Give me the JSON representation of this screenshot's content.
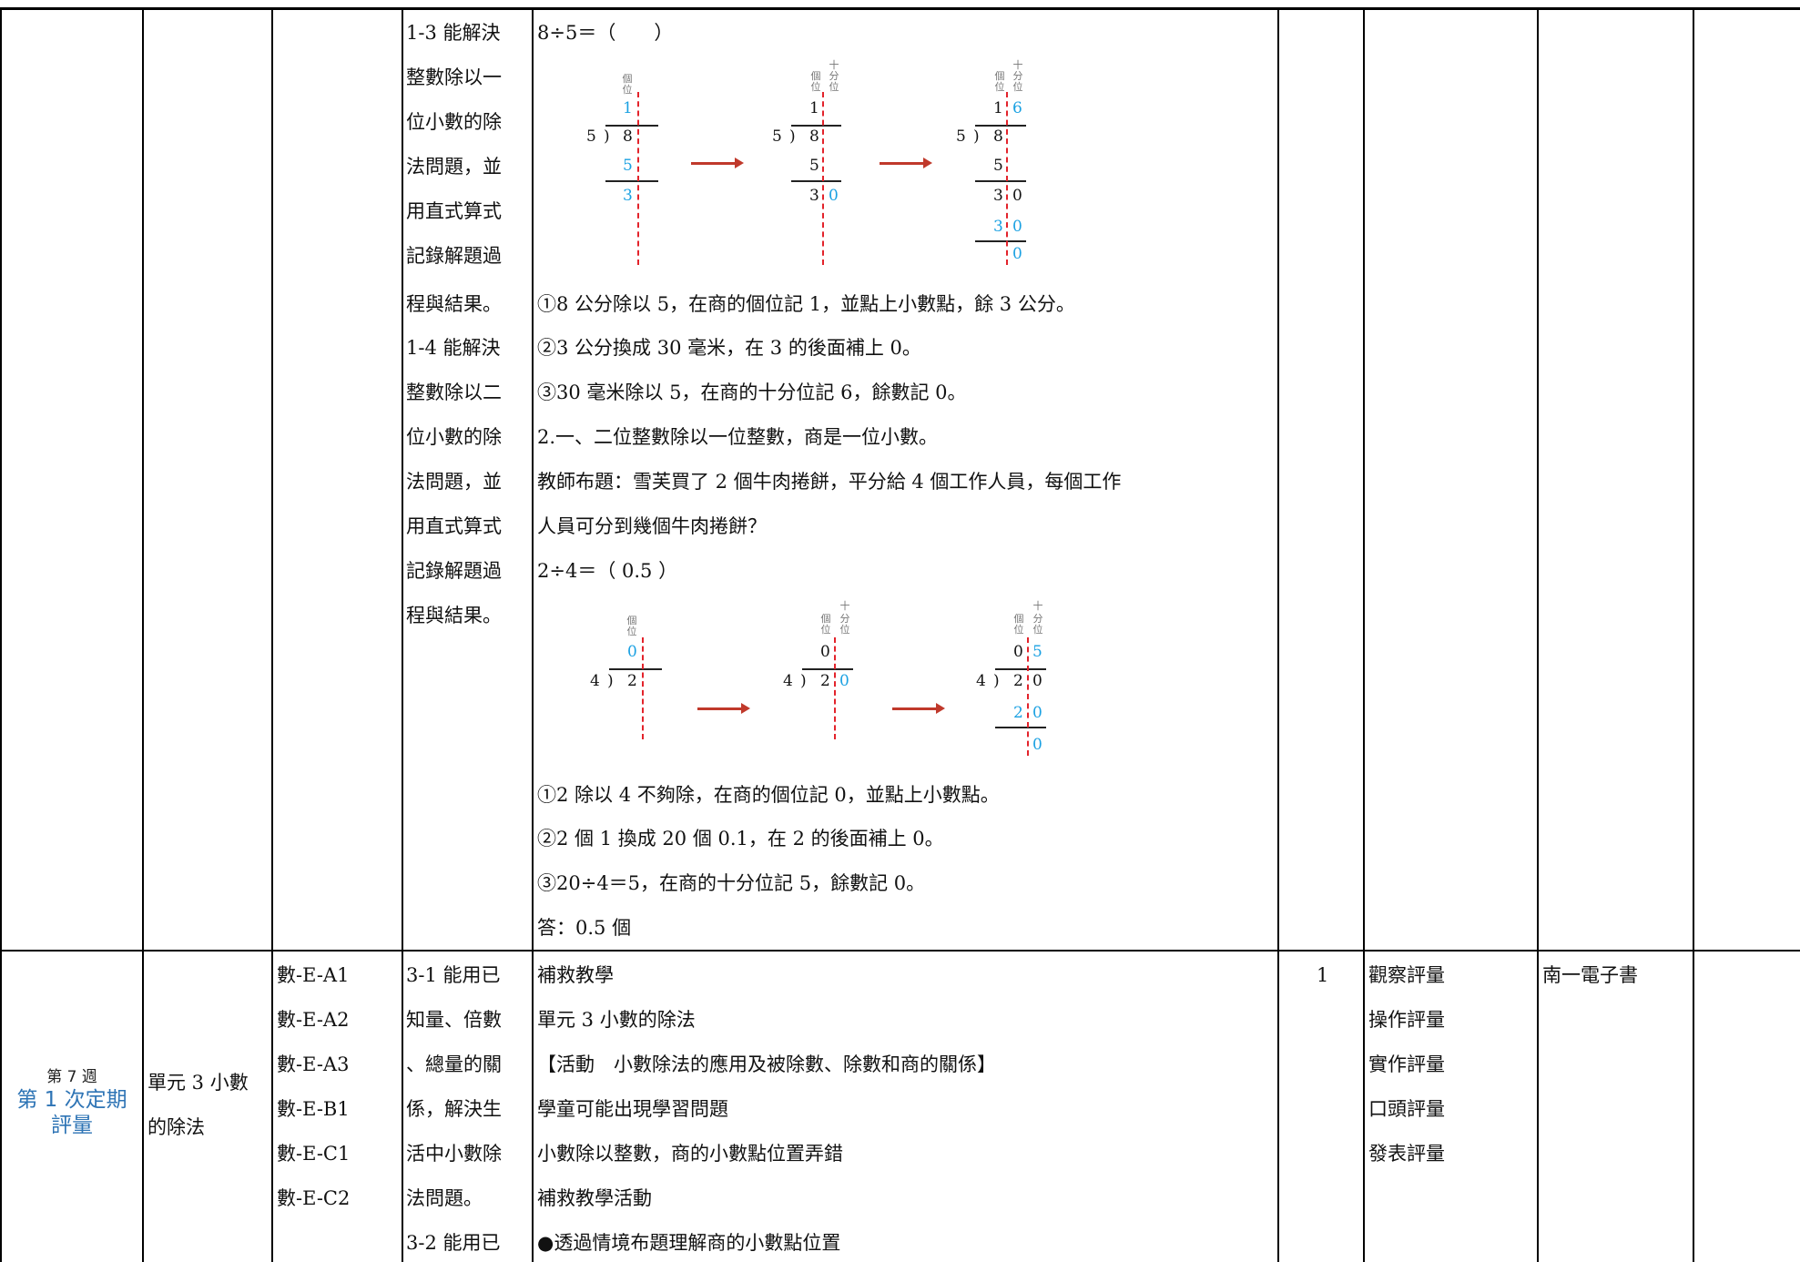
{
  "row1": {
    "objectives": [
      "1-3 能解決",
      "整數除以一",
      "位小數的除",
      "法問題，並",
      "用直式算式",
      "記錄解題過",
      "程與結果。",
      "1-4 能解決",
      "整數除以二",
      "位小數的除",
      "法問題，並",
      "用直式算式",
      "記錄解題過",
      "程與結果。"
    ],
    "equation1": "8÷5＝（　　）",
    "steps1": [
      "①8 公分除以 5，在商的個位記 1，並點上小數點，餘 3 公分。",
      "②3 公分換成 30 毫米，在 3 的後面補上 0。",
      "③30 毫米除以 5，在商的十分位記 6，餘數記 0。"
    ],
    "heading2": "2.一、二位整數除以一位整數，商是一位小數。",
    "problem2": [
      "教師布題：雪芙買了 2 個牛肉捲餅，平分給 4 個工作人員，每個工作",
      "人員可分到幾個牛肉捲餅？"
    ],
    "equation2": "2÷4＝（ 0.5 ）",
    "steps2": [
      "①2 除以 4 不夠除，在商的個位記 0，並點上小數點。",
      "②2 個 1 換成 20 個 0.1，在 2 的後面補上 0。",
      "③20÷4＝5，在商的十分位記 5，餘數記 0。"
    ],
    "answer2": "答：0.5 個",
    "place_labels": {
      "ones": "個位",
      "tenths": "十分位"
    },
    "div1": {
      "divisor": "5",
      "dividend": "8",
      "quotient": [
        "1",
        "6"
      ],
      "sub1": "5",
      "rem1": [
        "3",
        "0"
      ],
      "sub2": [
        "3",
        "0"
      ],
      "rem2": "0"
    },
    "div2": {
      "divisor": "4",
      "dividend": [
        "2",
        "0"
      ],
      "quotient": [
        "0",
        "5"
      ],
      "sub": [
        "2",
        "0"
      ],
      "rem": "0"
    }
  },
  "row2": {
    "week": "第 7 週",
    "exam": [
      "第 1 次定期",
      "評量"
    ],
    "unit": [
      "單元 3 小數",
      "的除法"
    ],
    "codes": [
      "數-E-A1",
      "數-E-A2",
      "數-E-A3",
      "數-E-B1",
      "數-E-C1",
      "數-E-C2"
    ],
    "objectives": [
      "3-1 能用已",
      "知量、倍數",
      "、總量的關",
      "係，解決生",
      "活中小數除",
      "法問題。",
      "3-2 能用已"
    ],
    "content": [
      "補救教學",
      "單元 3 小數的除法",
      "【活動　小數除法的應用及被除數、除數和商的關係】",
      "學童可能出現學習問題",
      "小數除以整數，商的小數點位置弄錯",
      "補救教學活動",
      "●透過情境布題理解商的小數點位置"
    ],
    "hours": "1",
    "assessment": [
      "觀察評量",
      "操作評量",
      "實作評量",
      "口頭評量",
      "發表評量"
    ],
    "resource": "南一電子書"
  },
  "colors": {
    "accent_blue": "#1ba1e2",
    "dashed_red": "#e3232b",
    "arrow_red": "#c0392b",
    "week_blue": "#2e74b5"
  }
}
